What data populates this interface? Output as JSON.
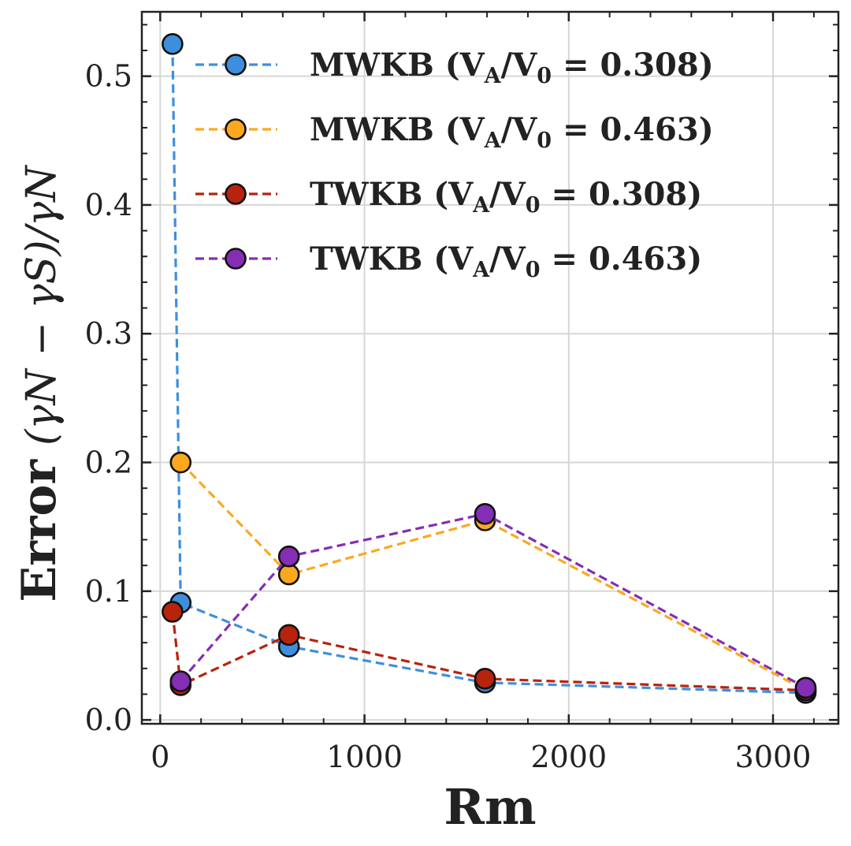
{
  "chart_data": {
    "type": "line",
    "xlabel": "Rm",
    "ylabel_main": "Error",
    "ylabel_formula": "(γN − γS)/γN",
    "xlim": [
      -90,
      3320
    ],
    "ylim": [
      -0.003,
      0.55
    ],
    "x_ticks": [
      0,
      1000,
      2000,
      3000
    ],
    "x_tick_labels": [
      "0",
      "1000",
      "2000",
      "3000"
    ],
    "y_ticks": [
      0.0,
      0.1,
      0.2,
      0.3,
      0.4,
      0.5
    ],
    "y_tick_labels": [
      "0.0",
      "0.1",
      "0.2",
      "0.3",
      "0.4",
      "0.5"
    ],
    "grid": true,
    "legend_position": "top-right",
    "series": [
      {
        "name": "MWKB (VA/V0 = 0.308)",
        "label_prefix": "MWKB (",
        "label_ratio": "0.308",
        "color": "#3d8fde",
        "x": [
          60,
          100,
          630,
          1590,
          3160
        ],
        "y": [
          0.525,
          0.091,
          0.057,
          0.029,
          0.021
        ]
      },
      {
        "name": "MWKB (VA/V0 = 0.463)",
        "label_prefix": "MWKB (",
        "label_ratio": "0.463",
        "color": "#fba81f",
        "x": [
          100,
          630,
          1590,
          3160
        ],
        "y": [
          0.2,
          0.113,
          0.155,
          0.023
        ]
      },
      {
        "name": "TWKB (VA/V0 = 0.308)",
        "label_prefix": "TWKB (",
        "label_ratio": "0.308",
        "color": "#b7230c",
        "x": [
          60,
          100,
          630,
          1590,
          3160
        ],
        "y": [
          0.084,
          0.027,
          0.066,
          0.032,
          0.023
        ]
      },
      {
        "name": "TWKB (VA/V0 = 0.463)",
        "label_prefix": "TWKB (",
        "label_ratio": "0.463",
        "color": "#842db5",
        "x": [
          100,
          630,
          1590,
          3160
        ],
        "y": [
          0.03,
          0.127,
          0.16,
          0.025
        ]
      }
    ]
  }
}
